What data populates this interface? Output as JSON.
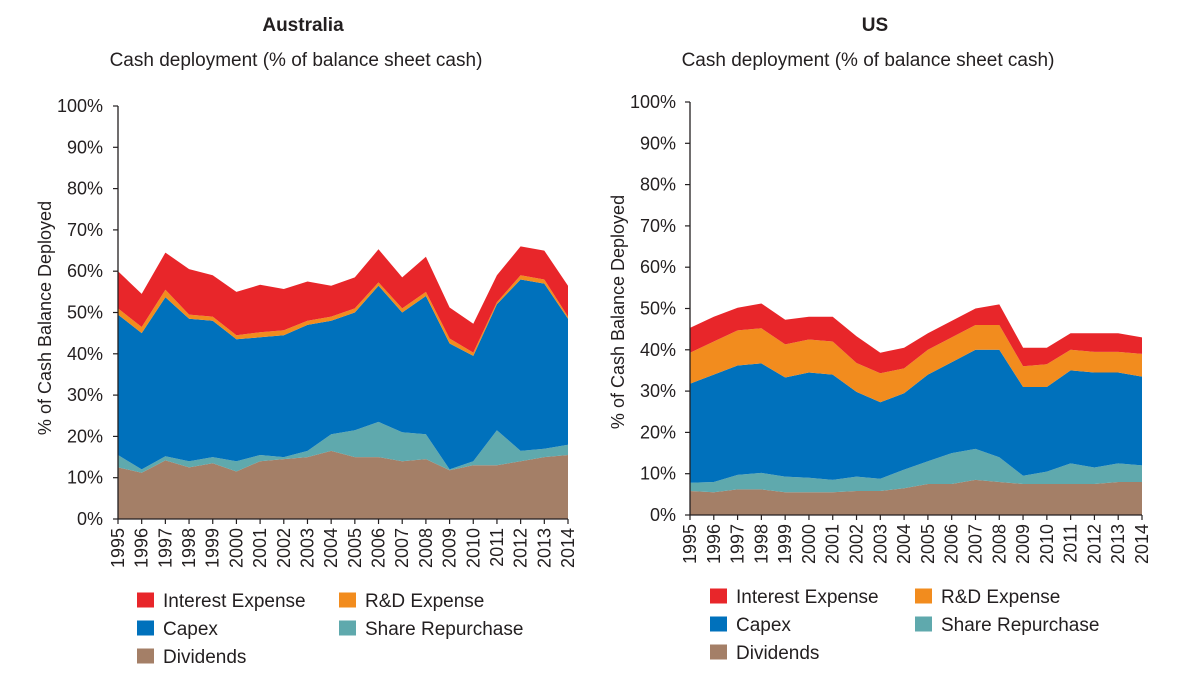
{
  "chart_data": [
    {
      "type": "area",
      "stacked": true,
      "title": "Australia",
      "subtitle": "Cash deployment (% of balance sheet cash)",
      "xlabel": "",
      "ylabel": "% of Cash Balance Deployed",
      "ylim": [
        0,
        100
      ],
      "y_ticks": [
        "0%",
        "10%",
        "20%",
        "30%",
        "40%",
        "50%",
        "60%",
        "70%",
        "80%",
        "90%",
        "100%"
      ],
      "categories": [
        "1995",
        "1996",
        "1997",
        "1998",
        "1999",
        "2000",
        "2001",
        "2002",
        "2003",
        "2004",
        "2005",
        "2006",
        "2007",
        "2008",
        "2009",
        "2010",
        "2011",
        "2012",
        "2013",
        "2014"
      ],
      "grid": false,
      "legend": "bottom",
      "series": [
        {
          "name": "Dividends",
          "color": "#a47f67",
          "values": [
            12.5,
            11.2,
            14.2,
            12.5,
            13.5,
            11.5,
            14.0,
            14.5,
            15.0,
            16.5,
            15.0,
            15.0,
            14.0,
            14.5,
            11.8,
            13.0,
            13.0,
            14.0,
            15.0,
            15.5
          ]
        },
        {
          "name": "Share Repurchase",
          "color": "#5fa9ad",
          "values": [
            3.0,
            0.8,
            1.0,
            1.5,
            1.5,
            2.5,
            1.5,
            0.5,
            1.5,
            4.0,
            6.5,
            8.5,
            7.0,
            6.0,
            0.2,
            1.0,
            8.5,
            2.5,
            2.0,
            2.5
          ]
        },
        {
          "name": "Capex",
          "color": "#0071bc",
          "values": [
            34.0,
            33.0,
            38.5,
            34.5,
            33.0,
            29.5,
            28.5,
            29.5,
            30.5,
            27.5,
            28.5,
            33.0,
            29.0,
            33.5,
            30.5,
            25.5,
            30.5,
            41.5,
            40.0,
            30.5
          ]
        },
        {
          "name": "R&D Expense",
          "color": "#f28c1e",
          "values": [
            1.5,
            1.5,
            1.8,
            1.0,
            1.0,
            1.0,
            1.2,
            1.2,
            1.0,
            1.0,
            1.0,
            0.8,
            1.0,
            1.0,
            1.2,
            0.8,
            0.5,
            1.0,
            1.0,
            0.5
          ]
        },
        {
          "name": "Interest Expense",
          "color": "#e8262a",
          "values": [
            9.0,
            8.0,
            9.0,
            11.0,
            10.0,
            10.5,
            11.5,
            10.0,
            9.5,
            7.5,
            7.5,
            8.0,
            7.5,
            8.5,
            7.5,
            7.0,
            6.5,
            7.0,
            7.0,
            7.5
          ]
        }
      ]
    },
    {
      "type": "area",
      "stacked": true,
      "title": "US",
      "subtitle": "Cash deployment (% of balance sheet cash)",
      "xlabel": "",
      "ylabel": "% of Cash Balance Deployed",
      "ylim": [
        0,
        100
      ],
      "y_ticks": [
        "0%",
        "10%",
        "20%",
        "30%",
        "40%",
        "50%",
        "60%",
        "70%",
        "80%",
        "90%",
        "100%"
      ],
      "categories": [
        "1995",
        "1996",
        "1997",
        "1998",
        "1999",
        "2000",
        "2001",
        "2002",
        "2003",
        "2004",
        "2005",
        "2006",
        "2007",
        "2008",
        "2009",
        "2010",
        "2011",
        "2012",
        "2013",
        "2014"
      ],
      "grid": false,
      "legend": "bottom",
      "series": [
        {
          "name": "Dividends",
          "color": "#a47f67",
          "values": [
            5.8,
            5.5,
            6.2,
            6.2,
            5.5,
            5.5,
            5.5,
            5.8,
            5.8,
            6.5,
            7.5,
            7.5,
            8.5,
            8.0,
            7.5,
            7.5,
            7.5,
            7.5,
            8.0,
            8.0
          ]
        },
        {
          "name": "Share Repurchase",
          "color": "#5fa9ad",
          "values": [
            2.0,
            2.5,
            3.5,
            4.0,
            3.8,
            3.5,
            3.0,
            3.5,
            3.0,
            4.5,
            5.5,
            7.5,
            7.5,
            6.0,
            2.0,
            3.0,
            5.0,
            4.0,
            4.5,
            4.0
          ]
        },
        {
          "name": "Capex",
          "color": "#0071bc",
          "values": [
            24.0,
            26.0,
            26.5,
            26.5,
            24.0,
            25.5,
            25.5,
            20.5,
            18.5,
            18.5,
            21.0,
            22.0,
            24.0,
            26.0,
            21.5,
            20.5,
            22.5,
            23.0,
            22.0,
            21.5
          ]
        },
        {
          "name": "R&D Expense",
          "color": "#f28c1e",
          "values": [
            7.5,
            8.0,
            8.5,
            8.5,
            8.0,
            8.0,
            8.0,
            7.0,
            7.0,
            6.0,
            6.0,
            6.0,
            6.0,
            6.0,
            5.0,
            5.5,
            5.0,
            5.0,
            5.0,
            5.5
          ]
        },
        {
          "name": "Interest Expense",
          "color": "#e8262a",
          "values": [
            6.0,
            6.0,
            5.5,
            6.0,
            6.0,
            5.5,
            6.0,
            6.5,
            5.0,
            5.0,
            4.0,
            4.0,
            4.0,
            5.0,
            4.5,
            4.0,
            4.0,
            4.5,
            4.5,
            4.0
          ]
        }
      ]
    }
  ],
  "legend_order": [
    "Interest Expense",
    "R&D Expense",
    "Capex",
    "Share Repurchase",
    "Dividends"
  ]
}
